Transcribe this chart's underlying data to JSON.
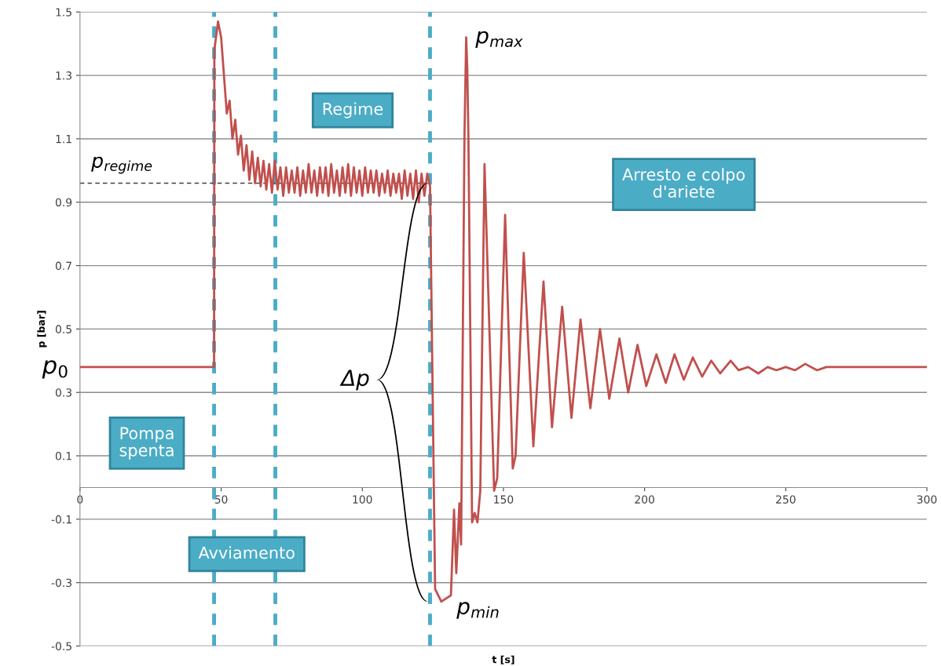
{
  "chart_data": {
    "type": "line",
    "xlabel": "t [s]",
    "ylabel": "p [bar]",
    "xlim": [
      0,
      300
    ],
    "xticks": [
      0,
      50,
      100,
      150,
      200,
      250,
      300
    ],
    "ylim": [
      -0.5,
      1.5
    ],
    "yticks": [
      -0.5,
      -0.3,
      -0.1,
      0.1,
      0.3,
      0.5,
      0.7,
      0.9,
      1.1,
      1.3,
      1.5
    ],
    "grid": "y",
    "marker": "none",
    "line_style": "solid",
    "series": [
      {
        "color": "#c0504d",
        "x": [
          0,
          47.5,
          47.6,
          48.9,
          50,
          51,
          52,
          53,
          54,
          55,
          56,
          57,
          58,
          59,
          60,
          61,
          62,
          63,
          64,
          65,
          66,
          67,
          68,
          69,
          70,
          71,
          72,
          73,
          74,
          75,
          76,
          77,
          78,
          79,
          80,
          81,
          82,
          83,
          84,
          85,
          86,
          87,
          88,
          89,
          90,
          91,
          92,
          93,
          94,
          95,
          96,
          97,
          98,
          99,
          100,
          101,
          102,
          103,
          104,
          105,
          106,
          107,
          108,
          109,
          110,
          111,
          112,
          113,
          114,
          115,
          116,
          117,
          118,
          119,
          120,
          121,
          122,
          123,
          124,
          125.8,
          128,
          131.4,
          132.5,
          133.3,
          134.4,
          135,
          136.2,
          136.8,
          137.2,
          137.6,
          138.9,
          139.8,
          140.8,
          141.8,
          143.3,
          146.7,
          147.8,
          150.6,
          153.3,
          154.3,
          157.2,
          160.6,
          164.2,
          167.2,
          170.8,
          174.1,
          177.3,
          180.8,
          184.2,
          187.5,
          191.1,
          194.2,
          197.5,
          200.6,
          204.2,
          207.5,
          210.6,
          213.9,
          217.1,
          220.4,
          223.6,
          226.8,
          230.5,
          233.3,
          236.7,
          240.3,
          243.6,
          246.7,
          250,
          253.3,
          256.9,
          261.1,
          264.4,
          300
        ],
        "values": [
          0.38,
          0.38,
          1.38,
          1.47,
          1.42,
          1.3,
          1.18,
          1.22,
          1.1,
          1.16,
          1.05,
          1.11,
          1.0,
          1.08,
          0.97,
          1.06,
          0.96,
          1.04,
          0.95,
          1.03,
          0.94,
          1.02,
          0.93,
          1.03,
          0.94,
          1.01,
          0.92,
          1.01,
          0.93,
          1.0,
          0.93,
          1.01,
          0.92,
          1.0,
          0.93,
          1.02,
          0.93,
          1.0,
          0.92,
          1.01,
          0.93,
          1.01,
          0.92,
          1.02,
          0.93,
          1.0,
          0.92,
          1.01,
          0.93,
          1.02,
          0.92,
          1.01,
          0.93,
          1.0,
          0.92,
          1.01,
          0.93,
          1.0,
          0.93,
          1.0,
          0.92,
          0.99,
          0.93,
          1.0,
          0.92,
          0.99,
          0.93,
          0.99,
          0.91,
          1.0,
          0.92,
          0.99,
          0.91,
          1.0,
          0.9,
          0.99,
          0.92,
          0.99,
          0.95,
          -0.32,
          -0.36,
          -0.34,
          -0.07,
          -0.27,
          -0.05,
          -0.18,
          1.11,
          1.42,
          1.32,
          1.1,
          -0.11,
          -0.08,
          -0.11,
          -0.01,
          1.02,
          -0.01,
          0.03,
          0.86,
          0.06,
          0.1,
          0.74,
          0.13,
          0.65,
          0.19,
          0.57,
          0.22,
          0.53,
          0.25,
          0.5,
          0.28,
          0.47,
          0.3,
          0.45,
          0.32,
          0.42,
          0.33,
          0.42,
          0.34,
          0.41,
          0.35,
          0.4,
          0.36,
          0.4,
          0.37,
          0.38,
          0.36,
          0.38,
          0.37,
          0.38,
          0.37,
          0.39,
          0.37,
          0.38,
          0.38
        ]
      }
    ],
    "ref_lines": [
      {
        "axis": "x",
        "value": 47.5,
        "color": "#4bacc6",
        "line_style": "dashed"
      },
      {
        "axis": "x",
        "value": 69.2,
        "color": "#4bacc6",
        "line_style": "dashed"
      },
      {
        "axis": "x",
        "value": 124,
        "color": "#4bacc6",
        "line_style": "dashed"
      },
      {
        "axis": "y",
        "value": 0.96,
        "label": "p$_{regime}$",
        "color": "#404040",
        "line_style": "dashed"
      }
    ],
    "annotations": [
      "Pompa\nspenta",
      "Avviamento",
      "Regime",
      "Arresto e colpo\nd'ariete",
      {
        "text": "p$_{0}$",
        "x": 0,
        "y": 0.38
      },
      {
        "text": "p$_{max}$",
        "x": 137,
        "y": 1.42
      },
      {
        "text": "p$_{min}$",
        "x": 128,
        "y": -0.36
      },
      "Δp"
    ]
  }
}
